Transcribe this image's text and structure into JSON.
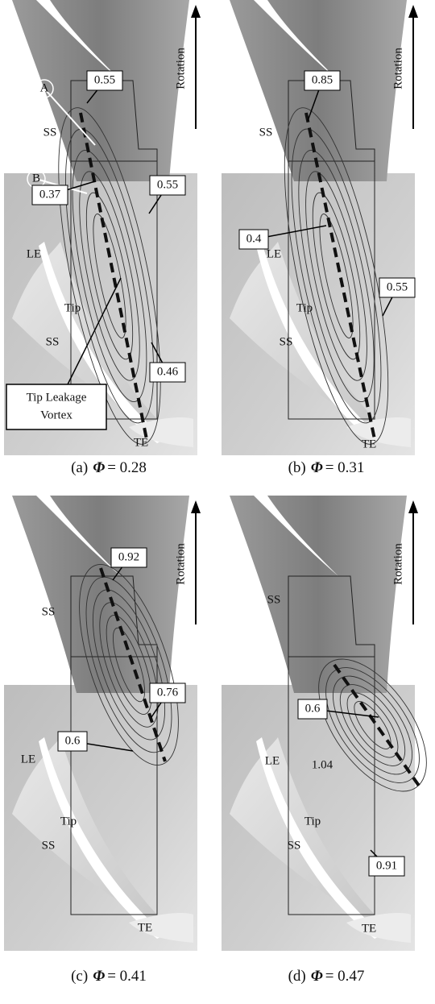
{
  "panels": [
    {
      "caption": {
        "label": "(a)",
        "symbol": "Φ",
        "value": "= 0.28"
      },
      "rotation": "Rotation",
      "annotations": [
        {
          "text": "0.55"
        },
        {
          "text": "A"
        },
        {
          "text": "SS"
        },
        {
          "text": "B"
        },
        {
          "text": "0.37"
        },
        {
          "text": "0.55"
        },
        {
          "text": "LE"
        },
        {
          "text": "Tip"
        },
        {
          "text": "SS"
        },
        {
          "text": "0.46"
        },
        {
          "lines": [
            "Tip Leakage",
            "Vortex"
          ]
        },
        {
          "text": "TE"
        }
      ]
    },
    {
      "caption": {
        "label": "(b)",
        "symbol": "Φ",
        "value": "= 0.31"
      },
      "rotation": "Rotation",
      "annotations": [
        {
          "text": "0.85"
        },
        {
          "text": "SS"
        },
        {
          "text": "0.4"
        },
        {
          "text": "0.55"
        },
        {
          "text": "LE"
        },
        {
          "text": "Tip"
        },
        {
          "text": "SS"
        },
        {
          "text": "TE"
        }
      ]
    },
    {
      "caption": {
        "label": "(c)",
        "symbol": "Φ",
        "value": "= 0.41"
      },
      "rotation": "Rotation",
      "annotations": [
        {
          "text": "0.92"
        },
        {
          "text": "SS"
        },
        {
          "text": "0.76"
        },
        {
          "text": "0.6"
        },
        {
          "text": "LE"
        },
        {
          "text": "Tip"
        },
        {
          "text": "SS"
        },
        {
          "text": "TE"
        }
      ]
    },
    {
      "caption": {
        "label": "(d)",
        "symbol": "Φ",
        "value": "= 0.47"
      },
      "rotation": "Rotation",
      "annotations": [
        {
          "text": "SS"
        },
        {
          "text": "0.6"
        },
        {
          "text": "LE"
        },
        {
          "text": "1.04"
        },
        {
          "text": "Tip"
        },
        {
          "text": "0.91"
        },
        {
          "text": "SS"
        },
        {
          "text": "TE"
        }
      ]
    }
  ]
}
